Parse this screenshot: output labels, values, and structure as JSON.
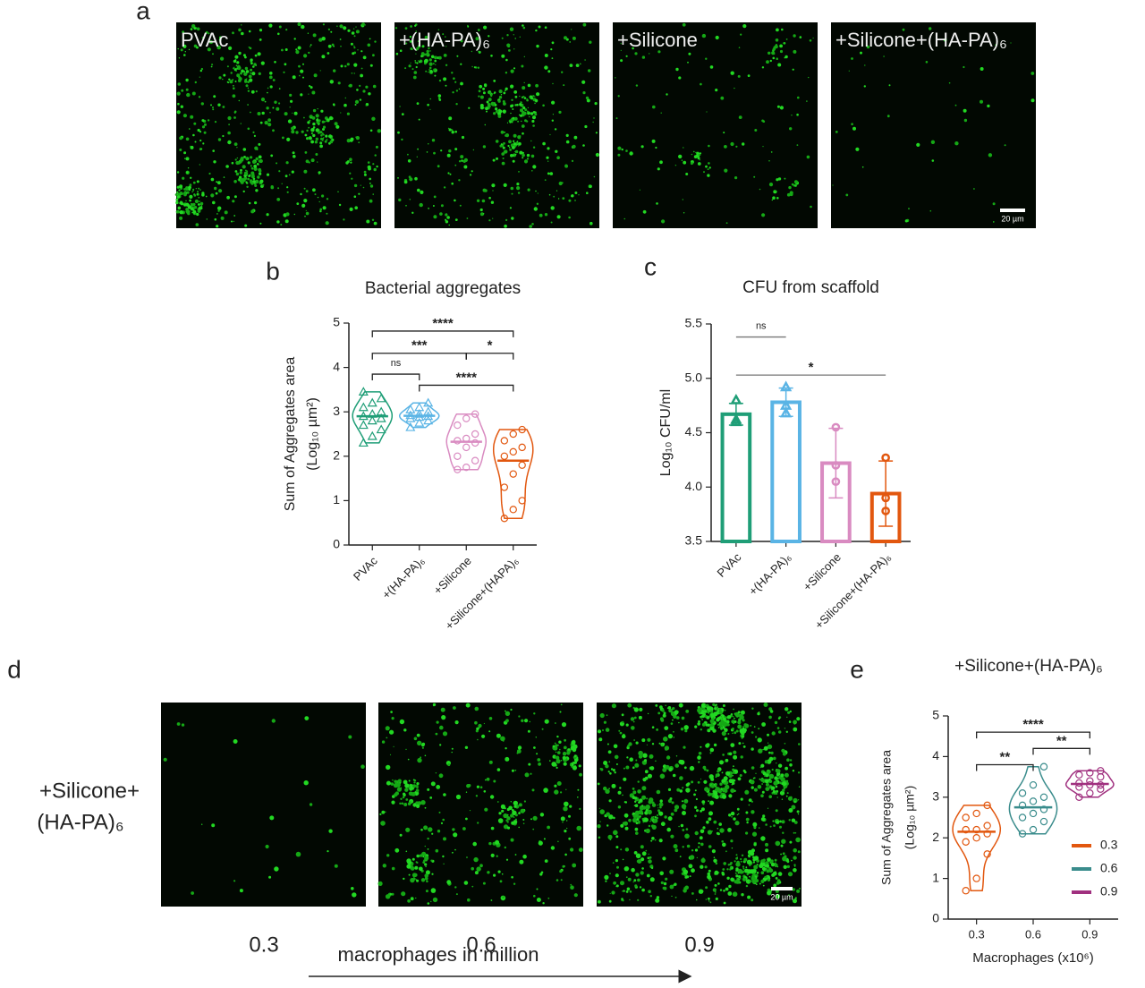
{
  "panel_a": {
    "letter": "a",
    "images": [
      "PVAc",
      "+(HA-PA)₆",
      "+Silicone",
      "+Silicone+(HA-PA)₆"
    ],
    "scale_bar": "20 µm"
  },
  "panel_d": {
    "letter": "d",
    "row_label": [
      "+Silicone+",
      "(HA-PA)₆"
    ],
    "images": [
      "0.3",
      "0.6",
      "0.9"
    ],
    "arrow_label": "macrophages in million",
    "scale_bar": "20 µm"
  },
  "chart_data": [
    {
      "letter": "b",
      "type": "violin",
      "title": "Bacterial aggregates",
      "ylabel": [
        "Sum of Aggregates area",
        "(Log₁₀ µm²)"
      ],
      "categories": [
        "PVAc",
        "+(HA-PA)₆",
        "+Silicone",
        "+Silicone+(HAPA)₆"
      ],
      "colors": [
        "#1f9e77",
        "#5ab4e5",
        "#d98bc1",
        "#e2570f"
      ],
      "markers": [
        "triangle",
        "triangle",
        "circle",
        "circle"
      ],
      "values": [
        [
          2.3,
          2.45,
          2.6,
          2.7,
          2.8,
          2.85,
          2.9,
          2.95,
          3.0,
          3.1,
          3.2,
          3.3,
          3.45
        ],
        [
          2.65,
          2.75,
          2.8,
          2.85,
          2.88,
          2.9,
          2.92,
          2.95,
          3.0,
          3.05,
          3.1,
          3.2
        ],
        [
          1.7,
          1.75,
          1.9,
          2.0,
          2.2,
          2.3,
          2.35,
          2.4,
          2.5,
          2.7,
          2.85,
          2.95
        ],
        [
          0.6,
          0.8,
          1.0,
          1.3,
          1.6,
          1.8,
          2.0,
          2.1,
          2.2,
          2.35,
          2.5,
          2.6
        ]
      ],
      "ylim": [
        0,
        5
      ],
      "yticks": [
        0,
        1,
        2,
        3,
        4,
        5
      ],
      "comparisons": [
        {
          "from": 0,
          "to": 3,
          "label": "****",
          "y": 4.82
        },
        {
          "from": 0,
          "to": 2,
          "label": "***",
          "y": 4.32
        },
        {
          "from": 2,
          "to": 3,
          "label": "*",
          "y": 4.32
        },
        {
          "from": 0,
          "to": 1,
          "label": "ns",
          "y": 3.85
        },
        {
          "from": 1,
          "to": 3,
          "label": "****",
          "y": 3.6
        }
      ]
    },
    {
      "letter": "c",
      "type": "bar",
      "title": "CFU from scaffold",
      "ylabel": [
        "Log₁₀ CFU/ml"
      ],
      "categories": [
        "PVAc",
        "+(HA-PA)₆",
        "+Silicone",
        "+Silicone+(HA-PA)₆"
      ],
      "colors": [
        "#1f9e77",
        "#5ab4e5",
        "#d98bc1",
        "#e2570f"
      ],
      "markers": [
        "triangle",
        "triangle",
        "circle",
        "circle"
      ],
      "values": [
        4.67,
        4.78,
        4.22,
        3.94
      ],
      "errors": [
        0.1,
        0.13,
        0.32,
        0.3
      ],
      "points": [
        [
          4.8,
          4.6,
          4.62
        ],
        [
          4.92,
          4.75,
          4.68
        ],
        [
          4.55,
          4.2,
          4.05
        ],
        [
          4.27,
          3.9,
          3.78
        ]
      ],
      "ylim": [
        3.5,
        5.5
      ],
      "yticks": [
        3.5,
        {
          "value": 4,
          "label": "4.0"
        },
        4.5,
        {
          "value": 5,
          "label": "5.0"
        },
        5.5
      ],
      "comparison_color": "#777777",
      "comparisons": [
        {
          "from": 0,
          "to": 1,
          "label": "ns",
          "y": 5.38
        },
        {
          "from": 0,
          "to": 3,
          "label": "*",
          "y": 5.03
        }
      ]
    },
    {
      "letter": "e",
      "type": "violin",
      "title": "+Silicone+(HA-PA)₆",
      "ylabel": [
        "Sum of Aggregates area",
        "(Log₁₀ µm²)"
      ],
      "xlabel": "Macrophages (x10⁶)",
      "categories": [
        "0.3",
        "0.6",
        "0.9"
      ],
      "series": [
        {
          "name": "0.3",
          "color": "#e2570f",
          "values": [
            0.7,
            1.0,
            1.6,
            1.9,
            2.0,
            2.1,
            2.2,
            2.2,
            2.3,
            2.5,
            2.6,
            2.8
          ]
        },
        {
          "name": "0.6",
          "color": "#3a8c8c",
          "values": [
            2.1,
            2.2,
            2.4,
            2.5,
            2.6,
            2.7,
            2.8,
            2.9,
            3.0,
            3.1,
            3.3,
            3.75
          ]
        },
        {
          "name": "0.9",
          "color": "#a0307f",
          "values": [
            3.0,
            3.1,
            3.2,
            3.25,
            3.3,
            3.3,
            3.35,
            3.4,
            3.5,
            3.55,
            3.6,
            3.65
          ]
        }
      ],
      "legend": "right",
      "ylim": [
        0,
        5
      ],
      "yticks": [
        0,
        1,
        2,
        3,
        4,
        5
      ],
      "comparisons": [
        {
          "from": 0,
          "to": 1,
          "label": "**",
          "y": 3.8
        },
        {
          "from": 1,
          "to": 2,
          "label": "**",
          "y": 4.2
        },
        {
          "from": 0,
          "to": 2,
          "label": "****",
          "y": 4.6
        }
      ]
    }
  ]
}
